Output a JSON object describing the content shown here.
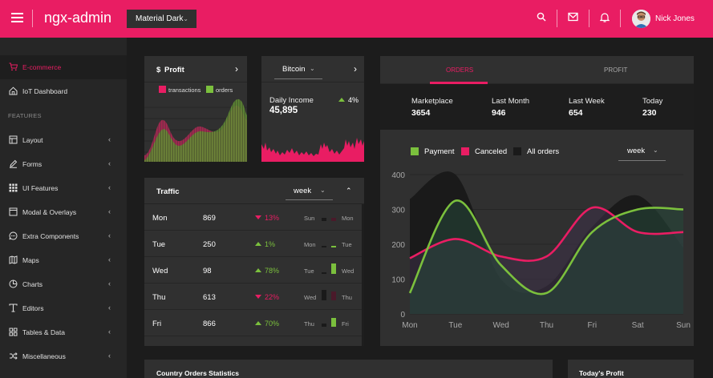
{
  "header": {
    "app_title": "ngx-admin",
    "theme": "Material Dark",
    "user_name": "Nick Jones",
    "accent": "#e91d63"
  },
  "sidebar": {
    "section_label": "FEATURES",
    "items": [
      {
        "label": "E-commerce",
        "icon": "cart-icon",
        "active": true
      },
      {
        "label": "IoT Dashboard",
        "icon": "home-icon"
      },
      {
        "label": "Layout",
        "icon": "layout-icon"
      },
      {
        "label": "Forms",
        "icon": "edit-icon"
      },
      {
        "label": "UI Features",
        "icon": "grid-icon"
      },
      {
        "label": "Modal & Overlays",
        "icon": "browser-icon"
      },
      {
        "label": "Extra Components",
        "icon": "message-icon"
      },
      {
        "label": "Maps",
        "icon": "map-icon"
      },
      {
        "label": "Charts",
        "icon": "pie-chart-icon"
      },
      {
        "label": "Editors",
        "icon": "text-icon"
      },
      {
        "label": "Tables & Data",
        "icon": "grid-2x2-icon"
      },
      {
        "label": "Miscellaneous",
        "icon": "shuffle-icon"
      }
    ]
  },
  "profit_card": {
    "title": "Profit",
    "currency_symbol": "$",
    "legend": [
      {
        "label": "transactions",
        "color": "#e91d63"
      },
      {
        "label": "orders",
        "color": "#7bc03d"
      }
    ]
  },
  "bitcoin_card": {
    "select": "Bitcoin",
    "label": "Daily Income",
    "value": "45,895",
    "change": "4%"
  },
  "traffic_card": {
    "title": "Traffic",
    "period": "week",
    "rows": [
      {
        "day": "Mon",
        "value": "869",
        "delta": "13%",
        "dir": "down",
        "prev": "Sun",
        "curr": "Mon",
        "bar_prev": 0.3,
        "bar_curr": 0.3
      },
      {
        "day": "Tue",
        "value": "250",
        "delta": "1%",
        "dir": "up",
        "prev": "Mon",
        "curr": "Tue",
        "bar_prev": 0.1,
        "bar_curr": 0.15
      },
      {
        "day": "Wed",
        "value": "98",
        "delta": "78%",
        "dir": "up",
        "prev": "Tue",
        "curr": "Wed",
        "bar_prev": 0.15,
        "bar_curr": 0.95
      },
      {
        "day": "Thu",
        "value": "613",
        "delta": "22%",
        "dir": "down",
        "prev": "Wed",
        "curr": "Thu",
        "bar_prev": 0.95,
        "bar_curr": 0.75
      },
      {
        "day": "Fri",
        "value": "866",
        "delta": "70%",
        "dir": "up",
        "prev": "Thu",
        "curr": "Fri",
        "bar_prev": 0.25,
        "bar_curr": 0.8
      }
    ]
  },
  "orders_card": {
    "tabs": [
      "ORDERS",
      "PROFIT"
    ],
    "summary": [
      {
        "label": "Marketplace",
        "value": "3654"
      },
      {
        "label": "Last Month",
        "value": "946"
      },
      {
        "label": "Last Week",
        "value": "654"
      },
      {
        "label": "Today",
        "value": "230"
      }
    ],
    "period": "week"
  },
  "chart_data": {
    "type": "area",
    "categories": [
      "Mon",
      "Tue",
      "Wed",
      "Thu",
      "Fri",
      "Sat",
      "Sun"
    ],
    "ylim": [
      0,
      400
    ],
    "yticks": [
      0,
      100,
      200,
      300,
      400
    ],
    "series": [
      {
        "name": "Payment",
        "color": "#7bc03d",
        "values": [
          60,
          325,
          140,
          60,
          235,
          300,
          300
        ]
      },
      {
        "name": "Canceled",
        "color": "#e91d63",
        "values": [
          160,
          215,
          165,
          165,
          305,
          235,
          235
        ]
      },
      {
        "name": "All orders",
        "color": "#1d1d1d",
        "values": [
          330,
          400,
          100,
          80,
          250,
          340,
          190
        ]
      }
    ]
  },
  "bottom_cards": {
    "country_title": "Country Orders Statistics",
    "profit_title": "Today's Profit"
  }
}
